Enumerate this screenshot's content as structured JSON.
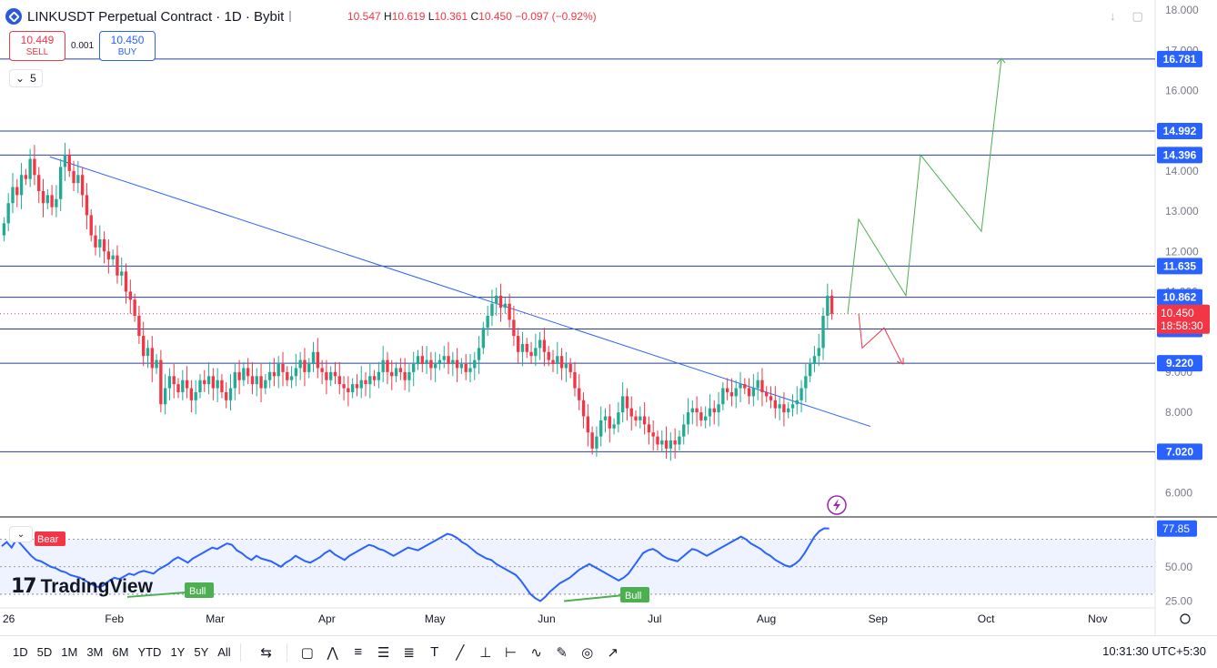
{
  "header": {
    "title": "LINKUSDT Perpetual Contract · 1D · Bybit",
    "ohlc": {
      "open_label": "",
      "open": "10.547",
      "high_label": "H",
      "high": "10.619",
      "low_label": "L",
      "low": "10.361",
      "close_label": "C",
      "close": "10.450",
      "change": "−0.097 (−0.92%)"
    }
  },
  "trade": {
    "sell_price": "10.449",
    "sell_label": "SELL",
    "spread": "0.001",
    "buy_price": "10.450",
    "buy_label": "BUY"
  },
  "legend_toggle": {
    "count": "5"
  },
  "colors": {
    "up": "#22ab94",
    "down": "#f23645",
    "line": "#2962ff",
    "rsi": "#2962ff",
    "forecast_up": "#4caf50",
    "forecast_down": "#f23645"
  },
  "price_axis": {
    "range": [
      5.4,
      18.25
    ],
    "ticks": [
      "18.000",
      "17.000",
      "16.000",
      "15.000",
      "14.000",
      "13.000",
      "12.000",
      "11.000",
      "9.000",
      "8.000",
      "7.000",
      "6.000"
    ],
    "levels": [
      {
        "value": 16.781,
        "label": "16.781"
      },
      {
        "value": 14.992,
        "label": "14.992"
      },
      {
        "value": 14.396,
        "label": "14.396"
      },
      {
        "value": 11.635,
        "label": "11.635"
      },
      {
        "value": 10.862,
        "label": "10.862"
      },
      {
        "value": 10.071,
        "label": "10.071"
      },
      {
        "value": 9.22,
        "label": "9.220"
      },
      {
        "value": 7.02,
        "label": "7.020"
      }
    ],
    "current": {
      "value": 10.45,
      "label": "10.450",
      "countdown": "18:58:30"
    }
  },
  "rsi_axis": {
    "range": [
      20,
      85
    ],
    "ticks": [
      "50.00",
      "25.00"
    ],
    "current": {
      "value": 77.85,
      "label": "77.85"
    },
    "upper": 70,
    "mid": 50,
    "lower": 30,
    "bear_label": "Bear",
    "bull_labels": [
      "Bull",
      "Bull"
    ]
  },
  "time_axis": {
    "labels": [
      {
        "day": 0,
        "label": "26"
      },
      {
        "day": 31,
        "label": "Feb"
      },
      {
        "day": 59,
        "label": "Mar"
      },
      {
        "day": 90,
        "label": "Apr"
      },
      {
        "day": 120,
        "label": "May"
      },
      {
        "day": 151,
        "label": "Jun"
      },
      {
        "day": 181,
        "label": "Jul"
      },
      {
        "day": 212,
        "label": "Aug"
      },
      {
        "day": 243,
        "label": "Sep"
      },
      {
        "day": 273,
        "label": "Oct"
      },
      {
        "day": 304,
        "label": "Nov"
      }
    ]
  },
  "chart_data": {
    "type": "candlestick",
    "title": "LINKUSDT Perpetual Contract · 1D · Bybit",
    "closes": [
      12.7,
      13.2,
      13.6,
      13.4,
      13.9,
      13.8,
      14.3,
      13.9,
      13.5,
      13.2,
      13.4,
      13.1,
      13.3,
      14.1,
      14.4,
      14.0,
      13.7,
      13.9,
      13.4,
      12.9,
      12.4,
      12.1,
      12.3,
      12.0,
      11.8,
      11.9,
      11.4,
      11.5,
      11.0,
      10.8,
      10.4,
      9.9,
      9.4,
      9.6,
      9.1,
      9.3,
      8.2,
      8.6,
      8.9,
      8.7,
      8.5,
      8.8,
      8.6,
      8.3,
      8.5,
      8.8,
      8.7,
      8.9,
      8.6,
      8.8,
      8.5,
      8.3,
      8.6,
      9.0,
      8.8,
      9.1,
      8.9,
      8.7,
      8.9,
      8.6,
      8.8,
      9.0,
      8.9,
      9.2,
      9.0,
      8.8,
      8.9,
      9.1,
      9.3,
      9.0,
      9.2,
      9.5,
      9.1,
      9.0,
      8.8,
      9.0,
      8.9,
      8.7,
      8.6,
      8.5,
      8.7,
      8.6,
      8.8,
      8.7,
      8.9,
      8.8,
      9.0,
      9.3,
      9.0,
      8.9,
      9.1,
      9.0,
      8.8,
      9.0,
      9.2,
      9.4,
      9.2,
      9.3,
      9.1,
      9.2,
      9.3,
      9.4,
      9.2,
      9.3,
      9.1,
      9.2,
      9.0,
      9.1,
      9.3,
      9.6,
      10.1,
      10.4,
      10.7,
      10.9,
      10.6,
      10.7,
      10.3,
      9.9,
      9.5,
      9.7,
      9.5,
      9.4,
      9.6,
      9.8,
      9.5,
      9.3,
      9.2,
      9.4,
      9.1,
      9.2,
      9.0,
      8.6,
      8.3,
      7.9,
      7.5,
      7.1,
      7.4,
      7.8,
      7.9,
      7.6,
      7.7,
      8.0,
      8.4,
      8.1,
      7.9,
      7.8,
      7.9,
      7.7,
      7.5,
      7.4,
      7.2,
      7.3,
      7.1,
      7.3,
      7.2,
      7.4,
      7.7,
      8.0,
      8.1,
      8.0,
      7.8,
      7.9,
      8.1,
      8.0,
      8.2,
      8.6,
      8.5,
      8.4,
      8.6,
      8.7,
      8.6,
      8.4,
      8.6,
      8.8,
      8.5,
      8.4,
      8.3,
      8.1,
      8.2,
      8.0,
      8.1,
      8.2,
      8.3,
      8.6,
      8.9,
      9.2,
      9.4,
      9.6,
      10.4,
      10.9,
      10.45
    ],
    "rsi": [
      65,
      68,
      64,
      70,
      66,
      62,
      58,
      55,
      54,
      52,
      50,
      49,
      47,
      46,
      44,
      43,
      42,
      40,
      38,
      36,
      35,
      37,
      40,
      42,
      41,
      43,
      45,
      44,
      46,
      47,
      46,
      45,
      48,
      50,
      52,
      55,
      57,
      55,
      53,
      56,
      58,
      60,
      62,
      64,
      63,
      65,
      67,
      66,
      62,
      60,
      57,
      55,
      58,
      56,
      55,
      54,
      52,
      50,
      53,
      55,
      58,
      56,
      54,
      53,
      55,
      57,
      60,
      62,
      59,
      57,
      55,
      58,
      60,
      62,
      64,
      66,
      65,
      63,
      62,
      60,
      58,
      60,
      62,
      64,
      63,
      62,
      64,
      66,
      68,
      70,
      72,
      74,
      73,
      71,
      68,
      66,
      63,
      60,
      58,
      56,
      55,
      52,
      50,
      48,
      46,
      44,
      40,
      35,
      30,
      27,
      25,
      28,
      32,
      35,
      38,
      40,
      42,
      45,
      48,
      50,
      52,
      50,
      48,
      46,
      44,
      42,
      40,
      42,
      45,
      50,
      55,
      60,
      62,
      63,
      61,
      58,
      56,
      55,
      54,
      57,
      60,
      63,
      62,
      60,
      58,
      60,
      62,
      64,
      66,
      68,
      70,
      72,
      70,
      67,
      65,
      63,
      60,
      58,
      55,
      53,
      51,
      50,
      52,
      55,
      60,
      66,
      72,
      76,
      78,
      77.85
    ],
    "series": [
      {
        "name": "LINKUSDT",
        "closes_ref": "closes"
      }
    ]
  },
  "toolbar": {
    "ranges": [
      "1D",
      "5D",
      "1M",
      "3M",
      "6M",
      "YTD",
      "1Y",
      "5Y",
      "All"
    ],
    "time": "10:31:30 UTC+5:30"
  },
  "watermark": {
    "text": "TradingView"
  }
}
